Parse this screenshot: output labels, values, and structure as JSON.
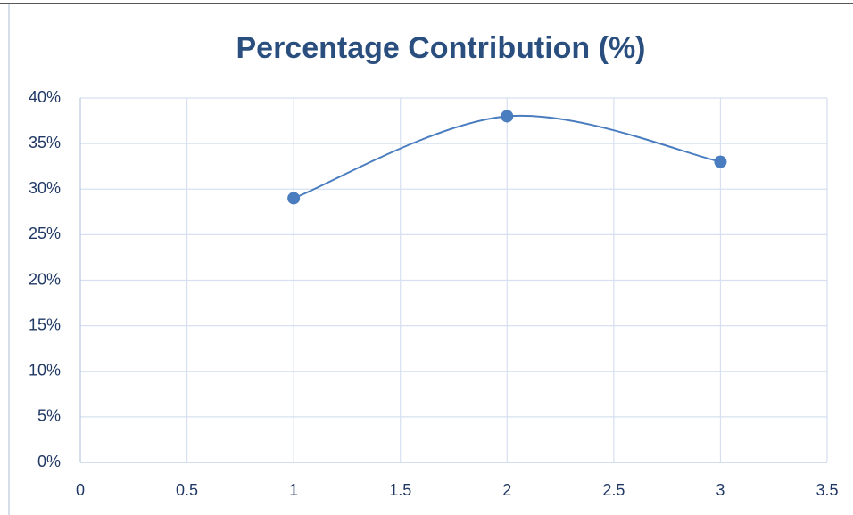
{
  "chart_data": {
    "type": "scatter-smooth",
    "title": "Percentage Contribution (%)",
    "series": [
      {
        "name": "Percentage Contribution (%)",
        "color": "#4a7dbf",
        "x": [
          1,
          2,
          3
        ],
        "values": [
          29,
          38,
          33
        ]
      }
    ],
    "xlim": [
      0,
      3.5
    ],
    "xticks": [
      0,
      0.5,
      1,
      1.5,
      2,
      2.5,
      3,
      3.5
    ],
    "ylim": [
      0,
      40
    ],
    "yticks": [
      {
        "value": 0,
        "label": "0%"
      },
      {
        "value": 5,
        "label": "5%"
      },
      {
        "value": 10,
        "label": "10%"
      },
      {
        "value": 15,
        "label": "15%"
      },
      {
        "value": 20,
        "label": "20%"
      },
      {
        "value": 25,
        "label": "25%"
      },
      {
        "value": 30,
        "label": "30%"
      },
      {
        "value": 35,
        "label": "35%"
      },
      {
        "value": 40,
        "label": "40%"
      }
    ],
    "grid": true
  }
}
